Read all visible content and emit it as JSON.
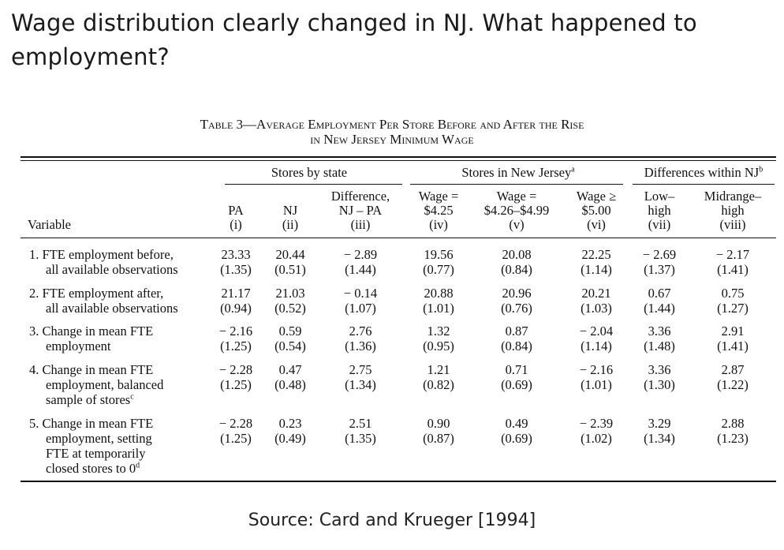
{
  "slide": {
    "title_line1": "Wage distribution clearly changed in NJ. What happened to",
    "title_line2": "employment?",
    "source": "Source:  Card and Krueger [1994]"
  },
  "table": {
    "caption_line1": "Table 3—Average Employment Per Store Before and After the Rise",
    "caption_line2": "in New Jersey Minimum Wage",
    "groups": {
      "stores_by_state": "Stores by state",
      "stores_in_nj": "Stores in New Jersey",
      "stores_in_nj_note": "a",
      "differences": "Differences within NJ",
      "differences_note": "b"
    },
    "variable_label": "Variable",
    "columns": [
      {
        "lines": [
          "PA",
          "(i)"
        ]
      },
      {
        "lines": [
          "NJ",
          "(ii)"
        ]
      },
      {
        "lines": [
          "Difference,",
          "NJ – PA",
          "(iii)"
        ]
      },
      {
        "lines": [
          "Wage =",
          "$4.25",
          "(iv)"
        ]
      },
      {
        "lines": [
          "Wage =",
          "$4.26–$4.99",
          "(v)"
        ]
      },
      {
        "lines": [
          "Wage ≥",
          "$5.00",
          "(vi)"
        ]
      },
      {
        "lines": [
          "Low–",
          "high",
          "(vii)"
        ]
      },
      {
        "lines": [
          "Midrange–",
          "high",
          "(viii)"
        ]
      }
    ],
    "rows": [
      {
        "label": [
          "1. FTE employment before,",
          "all available observations"
        ],
        "label_note": "",
        "values": [
          "23.33",
          "20.44",
          "− 2.89",
          "19.56",
          "20.08",
          "22.25",
          "− 2.69",
          "− 2.17"
        ],
        "se": [
          "(1.35)",
          "(0.51)",
          "(1.44)",
          "(0.77)",
          "(0.84)",
          "(1.14)",
          "(1.37)",
          "(1.41)"
        ]
      },
      {
        "label": [
          "2. FTE employment after,",
          "all available observations"
        ],
        "label_note": "",
        "values": [
          "21.17",
          "21.03",
          "− 0.14",
          "20.88",
          "20.96",
          "20.21",
          "0.67",
          "0.75"
        ],
        "se": [
          "(0.94)",
          "(0.52)",
          "(1.07)",
          "(1.01)",
          "(0.76)",
          "(1.03)",
          "(1.44)",
          "(1.27)"
        ]
      },
      {
        "label": [
          "3. Change in mean FTE",
          "employment"
        ],
        "label_note": "",
        "values": [
          "− 2.16",
          "0.59",
          "2.76",
          "1.32",
          "0.87",
          "− 2.04",
          "3.36",
          "2.91"
        ],
        "se": [
          "(1.25)",
          "(0.54)",
          "(1.36)",
          "(0.95)",
          "(0.84)",
          "(1.14)",
          "(1.48)",
          "(1.41)"
        ]
      },
      {
        "label": [
          "4. Change in mean FTE",
          "employment, balanced",
          "sample of stores"
        ],
        "label_note": "c",
        "values": [
          "− 2.28",
          "0.47",
          "2.75",
          "1.21",
          "0.71",
          "− 2.16",
          "3.36",
          "2.87"
        ],
        "se": [
          "(1.25)",
          "(0.48)",
          "(1.34)",
          "(0.82)",
          "(0.69)",
          "(1.01)",
          "(1.30)",
          "(1.22)"
        ]
      },
      {
        "label": [
          "5. Change in mean FTE",
          "employment, setting",
          "FTE at temporarily",
          "closed stores to 0"
        ],
        "label_note": "d",
        "values": [
          "− 2.28",
          "0.23",
          "2.51",
          "0.90",
          "0.49",
          "− 2.39",
          "3.29",
          "2.88"
        ],
        "se": [
          "(1.25)",
          "(0.49)",
          "(1.35)",
          "(0.87)",
          "(0.69)",
          "(1.02)",
          "(1.34)",
          "(1.23)"
        ]
      }
    ]
  }
}
